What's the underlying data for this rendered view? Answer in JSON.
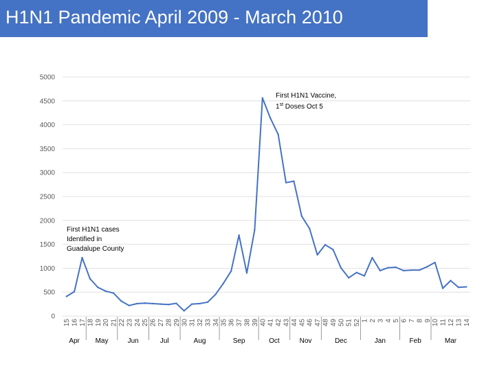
{
  "title": "H1N1 Pandemic April 2009 - March 2010",
  "colors": {
    "title_bg": "#4472c4",
    "line": "#4472c4",
    "grid": "#d9d9d9",
    "title_text": "#ffffff"
  },
  "chart_data": {
    "type": "line",
    "x": [
      "15",
      "16",
      "17",
      "18",
      "19",
      "20",
      "21",
      "22",
      "23",
      "24",
      "25",
      "26",
      "27",
      "28",
      "29",
      "30",
      "31",
      "32",
      "33",
      "34",
      "35",
      "36",
      "37",
      "38",
      "39",
      "40",
      "41",
      "42",
      "43",
      "44",
      "45",
      "46",
      "47",
      "48",
      "49",
      "50",
      "51",
      "52",
      "1",
      "2",
      "3",
      "4",
      "5",
      "6",
      "7",
      "8",
      "9",
      "10",
      "11",
      "12",
      "13",
      "14"
    ],
    "series": [
      {
        "values": [
          410,
          510,
          1220,
          780,
          600,
          520,
          480,
          310,
          220,
          260,
          270,
          260,
          250,
          240,
          265,
          110,
          250,
          260,
          290,
          450,
          680,
          940,
          1690,
          900,
          1800,
          4560,
          4140,
          3800,
          2790,
          2820,
          2090,
          1830,
          1280,
          1490,
          1390,
          1010,
          800,
          910,
          840,
          1220,
          950,
          1010,
          1020,
          950,
          960,
          960,
          1030,
          1120,
          580,
          740,
          600,
          610
        ]
      }
    ],
    "months": [
      "Apr",
      "May",
      "Jun",
      "Jul",
      "Aug",
      "Sep",
      "Oct",
      "Nov",
      "Dec",
      "Jan",
      "Feb",
      "Mar"
    ],
    "ylim": [
      0,
      5000
    ],
    "yticks": [
      "0",
      "500",
      "1000",
      "1500",
      "2000",
      "2500",
      "3000",
      "3500",
      "4000",
      "4500",
      "5000"
    ],
    "grid": true,
    "annotations": [
      {
        "lines": [
          "First H1N1 cases",
          "Identified in",
          "Guadalupe County"
        ]
      },
      {
        "lines": [
          "First H1N1 Vaccine,",
          "1st Doses Oct 5"
        ]
      }
    ]
  }
}
